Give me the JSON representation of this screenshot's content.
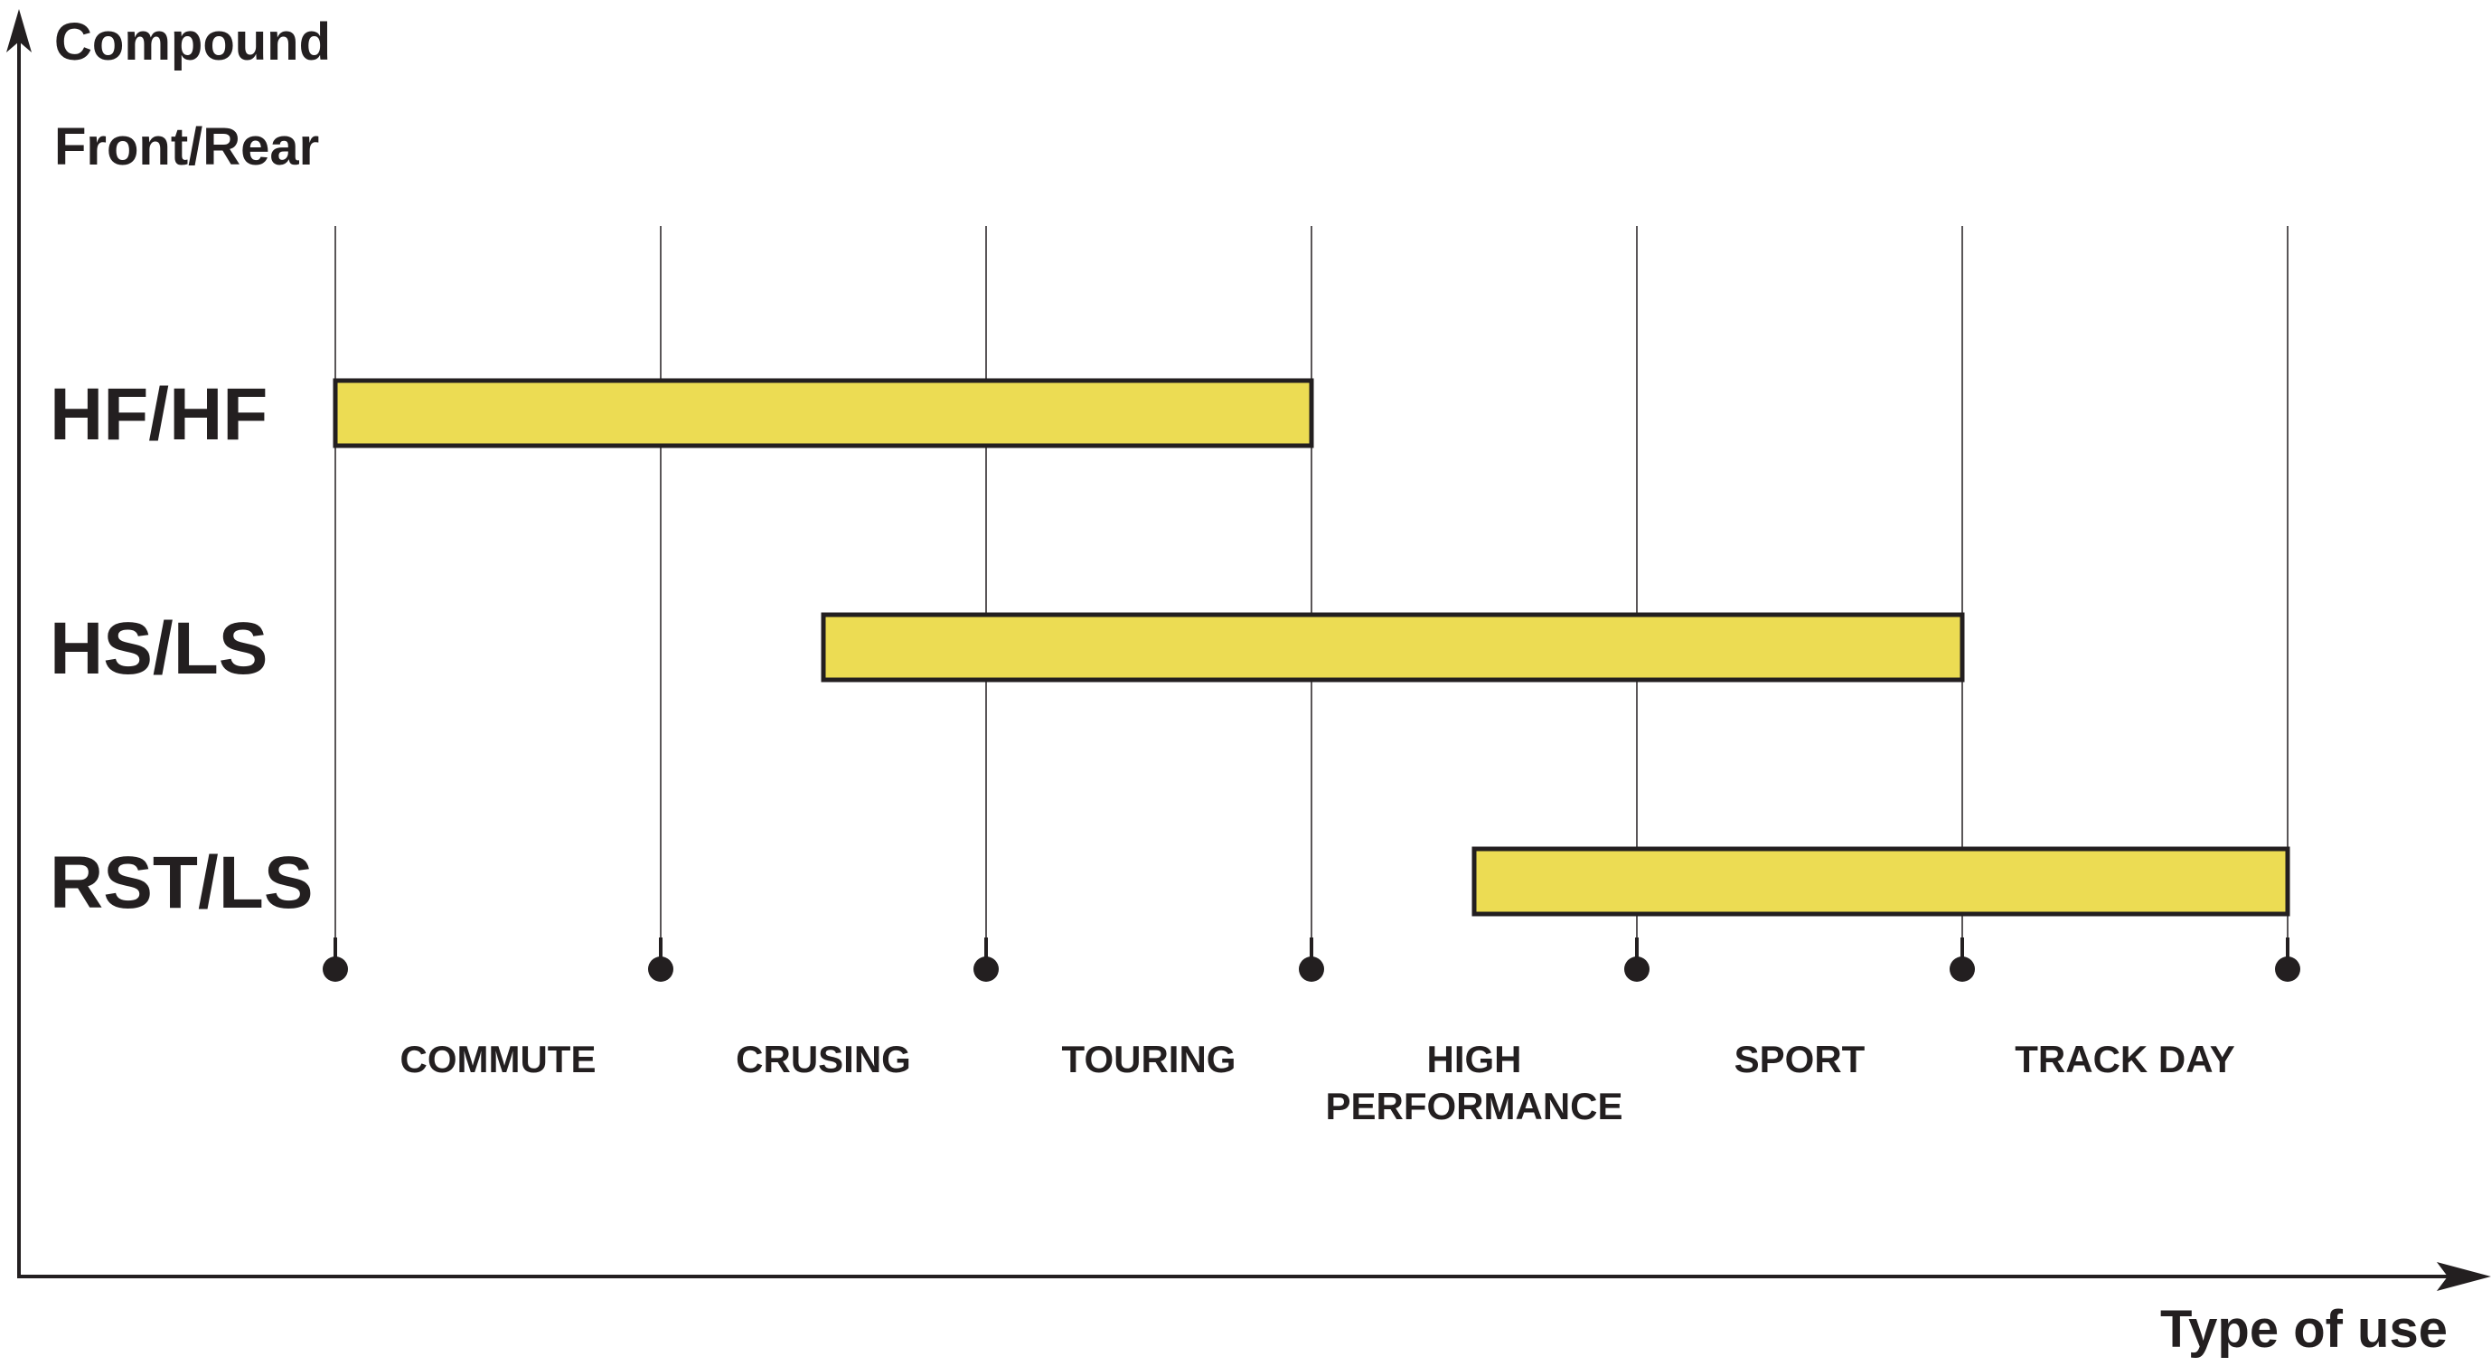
{
  "chart_data": {
    "type": "range-bar",
    "y_axis_title_lines": [
      "Compound",
      "Front/Rear"
    ],
    "x_axis_title": "Type of use",
    "categories": [
      [
        "COMMUTE"
      ],
      [
        "CRUSING"
      ],
      [
        "TOURING"
      ],
      [
        "HIGH",
        "PERFORMANCE"
      ],
      [
        "SPORT"
      ],
      [
        "TRACK DAY"
      ]
    ],
    "xlim": [
      0,
      6
    ],
    "grid": true,
    "bar_color": "#ecdc53",
    "bar_stroke": "#231f20",
    "text_color": "#231f20",
    "rows": [
      {
        "label": "HF/HF",
        "start": 0.0,
        "end": 3.0
      },
      {
        "label": "HS/LS",
        "start": 1.5,
        "end": 5.0
      },
      {
        "label": "RST/LS",
        "start": 3.5,
        "end": 6.0
      }
    ]
  }
}
